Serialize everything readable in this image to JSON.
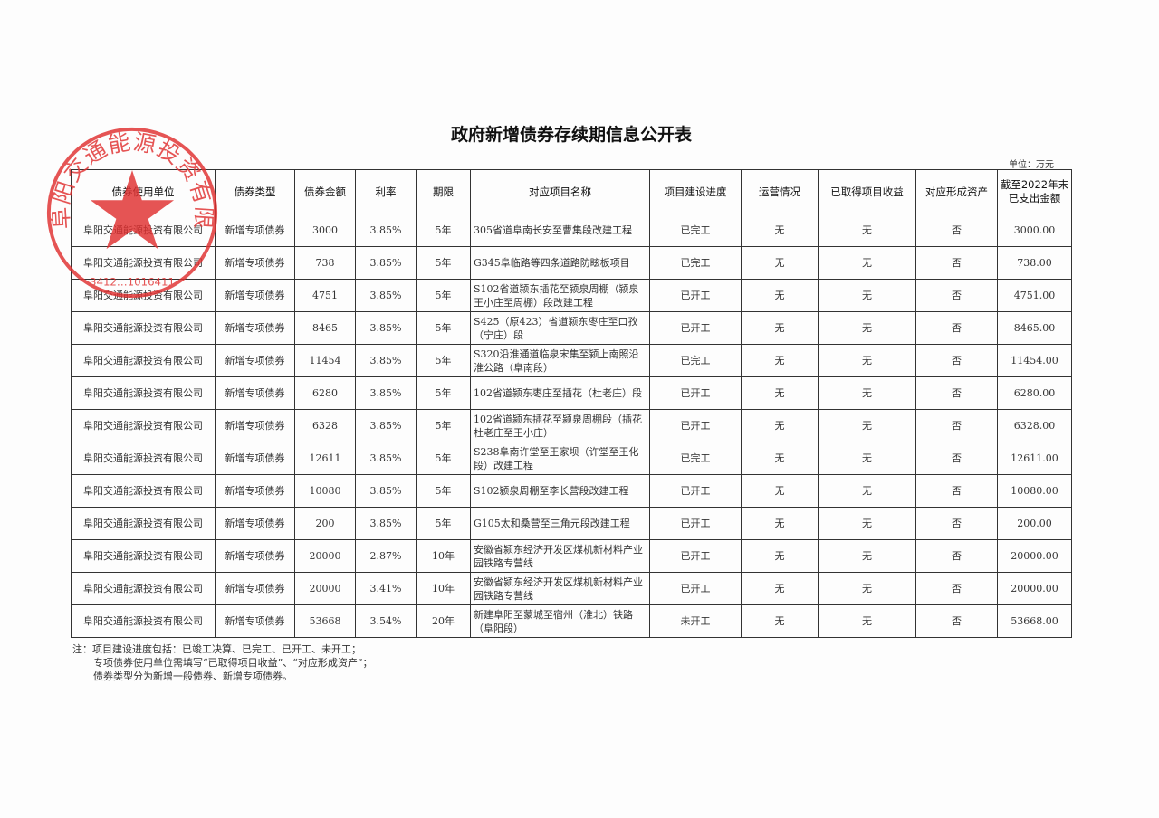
{
  "title": "政府新增债券存续期信息公开表",
  "unit": "单位：万元",
  "headers": [
    "债券使用单位",
    "债券类型",
    "债券金额",
    "利率",
    "期限",
    "对应项目名称",
    "项目建设进度",
    "运营情况",
    "已取得项目收益",
    "对应形成资产",
    "截至2022年末已支出金额"
  ],
  "rows": [
    [
      "阜阳交通能源投资有限公司",
      "新增专项债券",
      "3000",
      "3.85%",
      "5年",
      "305省道阜南长安至曹集段改建工程",
      "已完工",
      "无",
      "无",
      "否",
      "3000.00"
    ],
    [
      "阜阳交通能源投资有限公司",
      "新增专项债券",
      "738",
      "3.85%",
      "5年",
      "G345阜临路等四条道路防眩板项目",
      "已完工",
      "无",
      "无",
      "否",
      "738.00"
    ],
    [
      "阜阳交通能源投资有限公司",
      "新增专项债券",
      "4751",
      "3.85%",
      "5年",
      "S102省道颍东插花至颍泉周棚（颍泉王小庄至周棚）段改建工程",
      "已开工",
      "无",
      "无",
      "否",
      "4751.00"
    ],
    [
      "阜阳交通能源投资有限公司",
      "新增专项债券",
      "8465",
      "3.85%",
      "5年",
      "S425（原423）省道颍东枣庄至口孜（宁庄）段",
      "已开工",
      "无",
      "无",
      "否",
      "8465.00"
    ],
    [
      "阜阳交通能源投资有限公司",
      "新增专项债券",
      "11454",
      "3.85%",
      "5年",
      "S320沿淮通道临泉宋集至颍上南照沿淮公路（阜南段）",
      "已完工",
      "无",
      "无",
      "否",
      "11454.00"
    ],
    [
      "阜阳交通能源投资有限公司",
      "新增专项债券",
      "6280",
      "3.85%",
      "5年",
      "102省道颍东枣庄至插花（杜老庄）段",
      "已开工",
      "无",
      "无",
      "否",
      "6280.00"
    ],
    [
      "阜阳交通能源投资有限公司",
      "新增专项债券",
      "6328",
      "3.85%",
      "5年",
      "102省道颍东插花至颍泉周棚段（插花杜老庄至王小庄）",
      "已开工",
      "无",
      "无",
      "否",
      "6328.00"
    ],
    [
      "阜阳交通能源投资有限公司",
      "新增专项债券",
      "12611",
      "3.85%",
      "5年",
      "S238阜南许堂至王家坝（许堂至王化段）改建工程",
      "已完工",
      "无",
      "无",
      "否",
      "12611.00"
    ],
    [
      "阜阳交通能源投资有限公司",
      "新增专项债券",
      "10080",
      "3.85%",
      "5年",
      "S102颍泉周棚至李长营段改建工程",
      "已开工",
      "无",
      "无",
      "否",
      "10080.00"
    ],
    [
      "阜阳交通能源投资有限公司",
      "新增专项债券",
      "200",
      "3.85%",
      "5年",
      "G105太和桑营至三角元段改建工程",
      "已开工",
      "无",
      "无",
      "否",
      "200.00"
    ],
    [
      "阜阳交通能源投资有限公司",
      "新增专项债券",
      "20000",
      "2.87%",
      "10年",
      "安徽省颍东经济开发区煤机新材料产业园铁路专营线",
      "已开工",
      "无",
      "无",
      "否",
      "20000.00"
    ],
    [
      "阜阳交通能源投资有限公司",
      "新增专项债券",
      "20000",
      "3.41%",
      "10年",
      "安徽省颍东经济开发区煤机新材料产业园铁路专营线",
      "已开工",
      "无",
      "无",
      "否",
      "20000.00"
    ],
    [
      "阜阳交通能源投资有限公司",
      "新增专项债券",
      "53668",
      "3.54%",
      "20年",
      "新建阜阳至蒙城至宿州（淮北）铁路（阜阳段）",
      "未开工",
      "无",
      "无",
      "否",
      "53668.00"
    ]
  ],
  "notes": [
    "注：项目建设进度包括：已竣工决算、已完工、已开工、未开工；",
    "专项债券使用单位需填写“已取得项目收益”、“对应形成资产”；",
    "债券类型分为新增一般债券、新增专项债券。"
  ],
  "stamp": {
    "text": "阜阳交通能源投资有限公司",
    "number": "3412…1016411",
    "color": "#e03030"
  }
}
